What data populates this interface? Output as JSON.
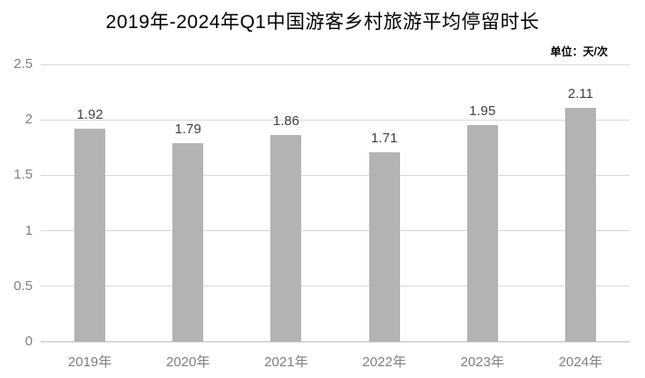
{
  "chart": {
    "title": "2019年-2024年Q1中国游客乡村旅游平均停留时长",
    "unit_label": "单位：天/次"
  },
  "chart_data": {
    "type": "bar",
    "title": "2019年-2024年Q1中国游客乡村旅游平均停留时长",
    "unit_label": "单位：天/次",
    "categories": [
      "2019年",
      "2020年",
      "2021年",
      "2022年",
      "2023年",
      "2024年"
    ],
    "values": [
      1.92,
      1.79,
      1.86,
      1.71,
      1.95,
      2.11
    ],
    "value_labels": [
      "1.92",
      "1.79",
      "1.86",
      "1.71",
      "1.95",
      "2.11"
    ],
    "xlabel": "",
    "ylabel": "",
    "ylim": [
      0,
      2.5
    ],
    "ytick_interval": 0.5,
    "ytick_labels": [
      "0",
      "0.5",
      "1",
      "1.5",
      "2",
      "2.5"
    ],
    "grid": true,
    "legend": false,
    "colors": {
      "bar": "#b3b3b3",
      "gridline": "#d9d9d9",
      "axis_line": "#d9d9d9",
      "axis_text": "#808080",
      "value_text": "#404040",
      "title_text": "#000000",
      "unit_text": "#000000"
    }
  }
}
